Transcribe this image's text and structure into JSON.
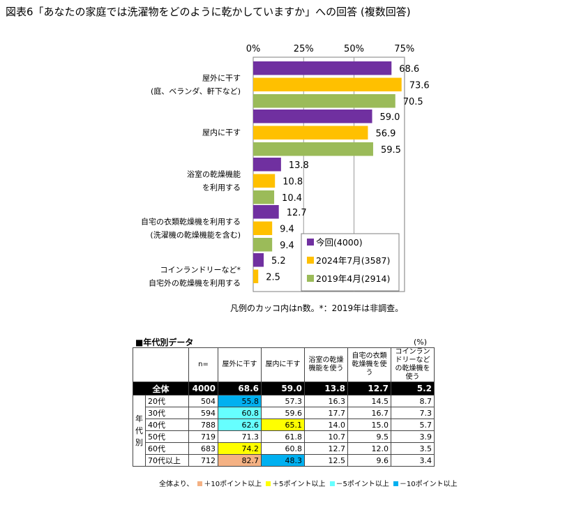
{
  "title": "図表6「あなたの家庭では洗濯物をどのように乾かしていますか」への回答 (複数回答)",
  "chart_data": {
    "type": "bar",
    "orientation": "horizontal",
    "categories": [
      [
        "屋外に干す",
        "(庭、ベランダ、軒下など)"
      ],
      [
        "屋内に干す"
      ],
      [
        "浴室の乾燥機能",
        "を利用する"
      ],
      [
        "自宅の衣類乾燥機を利用する",
        "(洗濯機の乾燥機能を含む)"
      ],
      [
        "コインランドリーなど*",
        "自宅外の乾燥機を利用する"
      ]
    ],
    "series": [
      {
        "name": "今回(4000)",
        "color": "#7030a0",
        "values": [
          68.6,
          59.0,
          13.8,
          12.7,
          5.2
        ]
      },
      {
        "name": "2024年7月(3587)",
        "color": "#ffc000",
        "values": [
          73.6,
          56.9,
          10.8,
          9.4,
          2.5
        ]
      },
      {
        "name": "2019年4月(2914)",
        "color": "#9bbb59",
        "values": [
          70.5,
          59.5,
          10.4,
          9.4,
          null
        ]
      }
    ],
    "xticks": [
      "0%",
      "25%",
      "50%",
      "75%"
    ],
    "xlim": [
      0,
      75
    ],
    "grid": true,
    "legend_position": "bottom-right",
    "footnote": "凡例のカッコ内はn数。*：2019年は非調查。"
  },
  "age_table": {
    "title": "■年代別データ",
    "unit": "(%)",
    "headers": [
      "n=",
      "屋外に干す",
      "屋内に干す",
      "浴室の乾燥機能を使う",
      "自宅の衣類乾燥機を使う",
      "コインランドリーなどの乾燥機を使う"
    ],
    "side_label": [
      "年",
      "代",
      "別"
    ],
    "total": {
      "label": "全体",
      "n": "4000",
      "values": [
        "68.6",
        "59.0",
        "13.8",
        "12.7",
        "5.2"
      ]
    },
    "rows": [
      {
        "label": "20代",
        "n": "504",
        "values": [
          "55.8",
          "57.3",
          "16.3",
          "14.5",
          "8.7"
        ],
        "highlights": [
          "#00b0f0",
          "",
          "",
          "",
          ""
        ]
      },
      {
        "label": "30代",
        "n": "594",
        "values": [
          "60.8",
          "59.6",
          "17.7",
          "16.7",
          "7.3"
        ],
        "highlights": [
          "#66ffff",
          "",
          "",
          "",
          ""
        ]
      },
      {
        "label": "40代",
        "n": "788",
        "values": [
          "62.6",
          "65.1",
          "14.0",
          "15.0",
          "5.7"
        ],
        "highlights": [
          "#66ffff",
          "#ffff00",
          "",
          "",
          ""
        ]
      },
      {
        "label": "50代",
        "n": "719",
        "values": [
          "71.3",
          "61.8",
          "10.7",
          "9.5",
          "3.9"
        ],
        "highlights": [
          "",
          "",
          "",
          "",
          ""
        ]
      },
      {
        "label": "60代",
        "n": "683",
        "values": [
          "74.2",
          "60.8",
          "12.7",
          "12.0",
          "3.5"
        ],
        "highlights": [
          "#ffff00",
          "",
          "",
          "",
          ""
        ]
      },
      {
        "label": "70代以上",
        "n": "712",
        "values": [
          "82.7",
          "48.3",
          "12.5",
          "9.6",
          "3.4"
        ],
        "highlights": [
          "#f4b183",
          "#00b0f0",
          "",
          "",
          ""
        ]
      }
    ],
    "legend": {
      "prefix": "全体より、",
      "items": [
        {
          "color": "#f4b183",
          "label": "＋10ポイント以上"
        },
        {
          "color": "#ffff00",
          "label": "＋5ポイント以上"
        },
        {
          "color": "#66ffff",
          "label": "－5ポイント以上"
        },
        {
          "color": "#00b0f0",
          "label": "－10ポイント以上"
        }
      ]
    }
  }
}
